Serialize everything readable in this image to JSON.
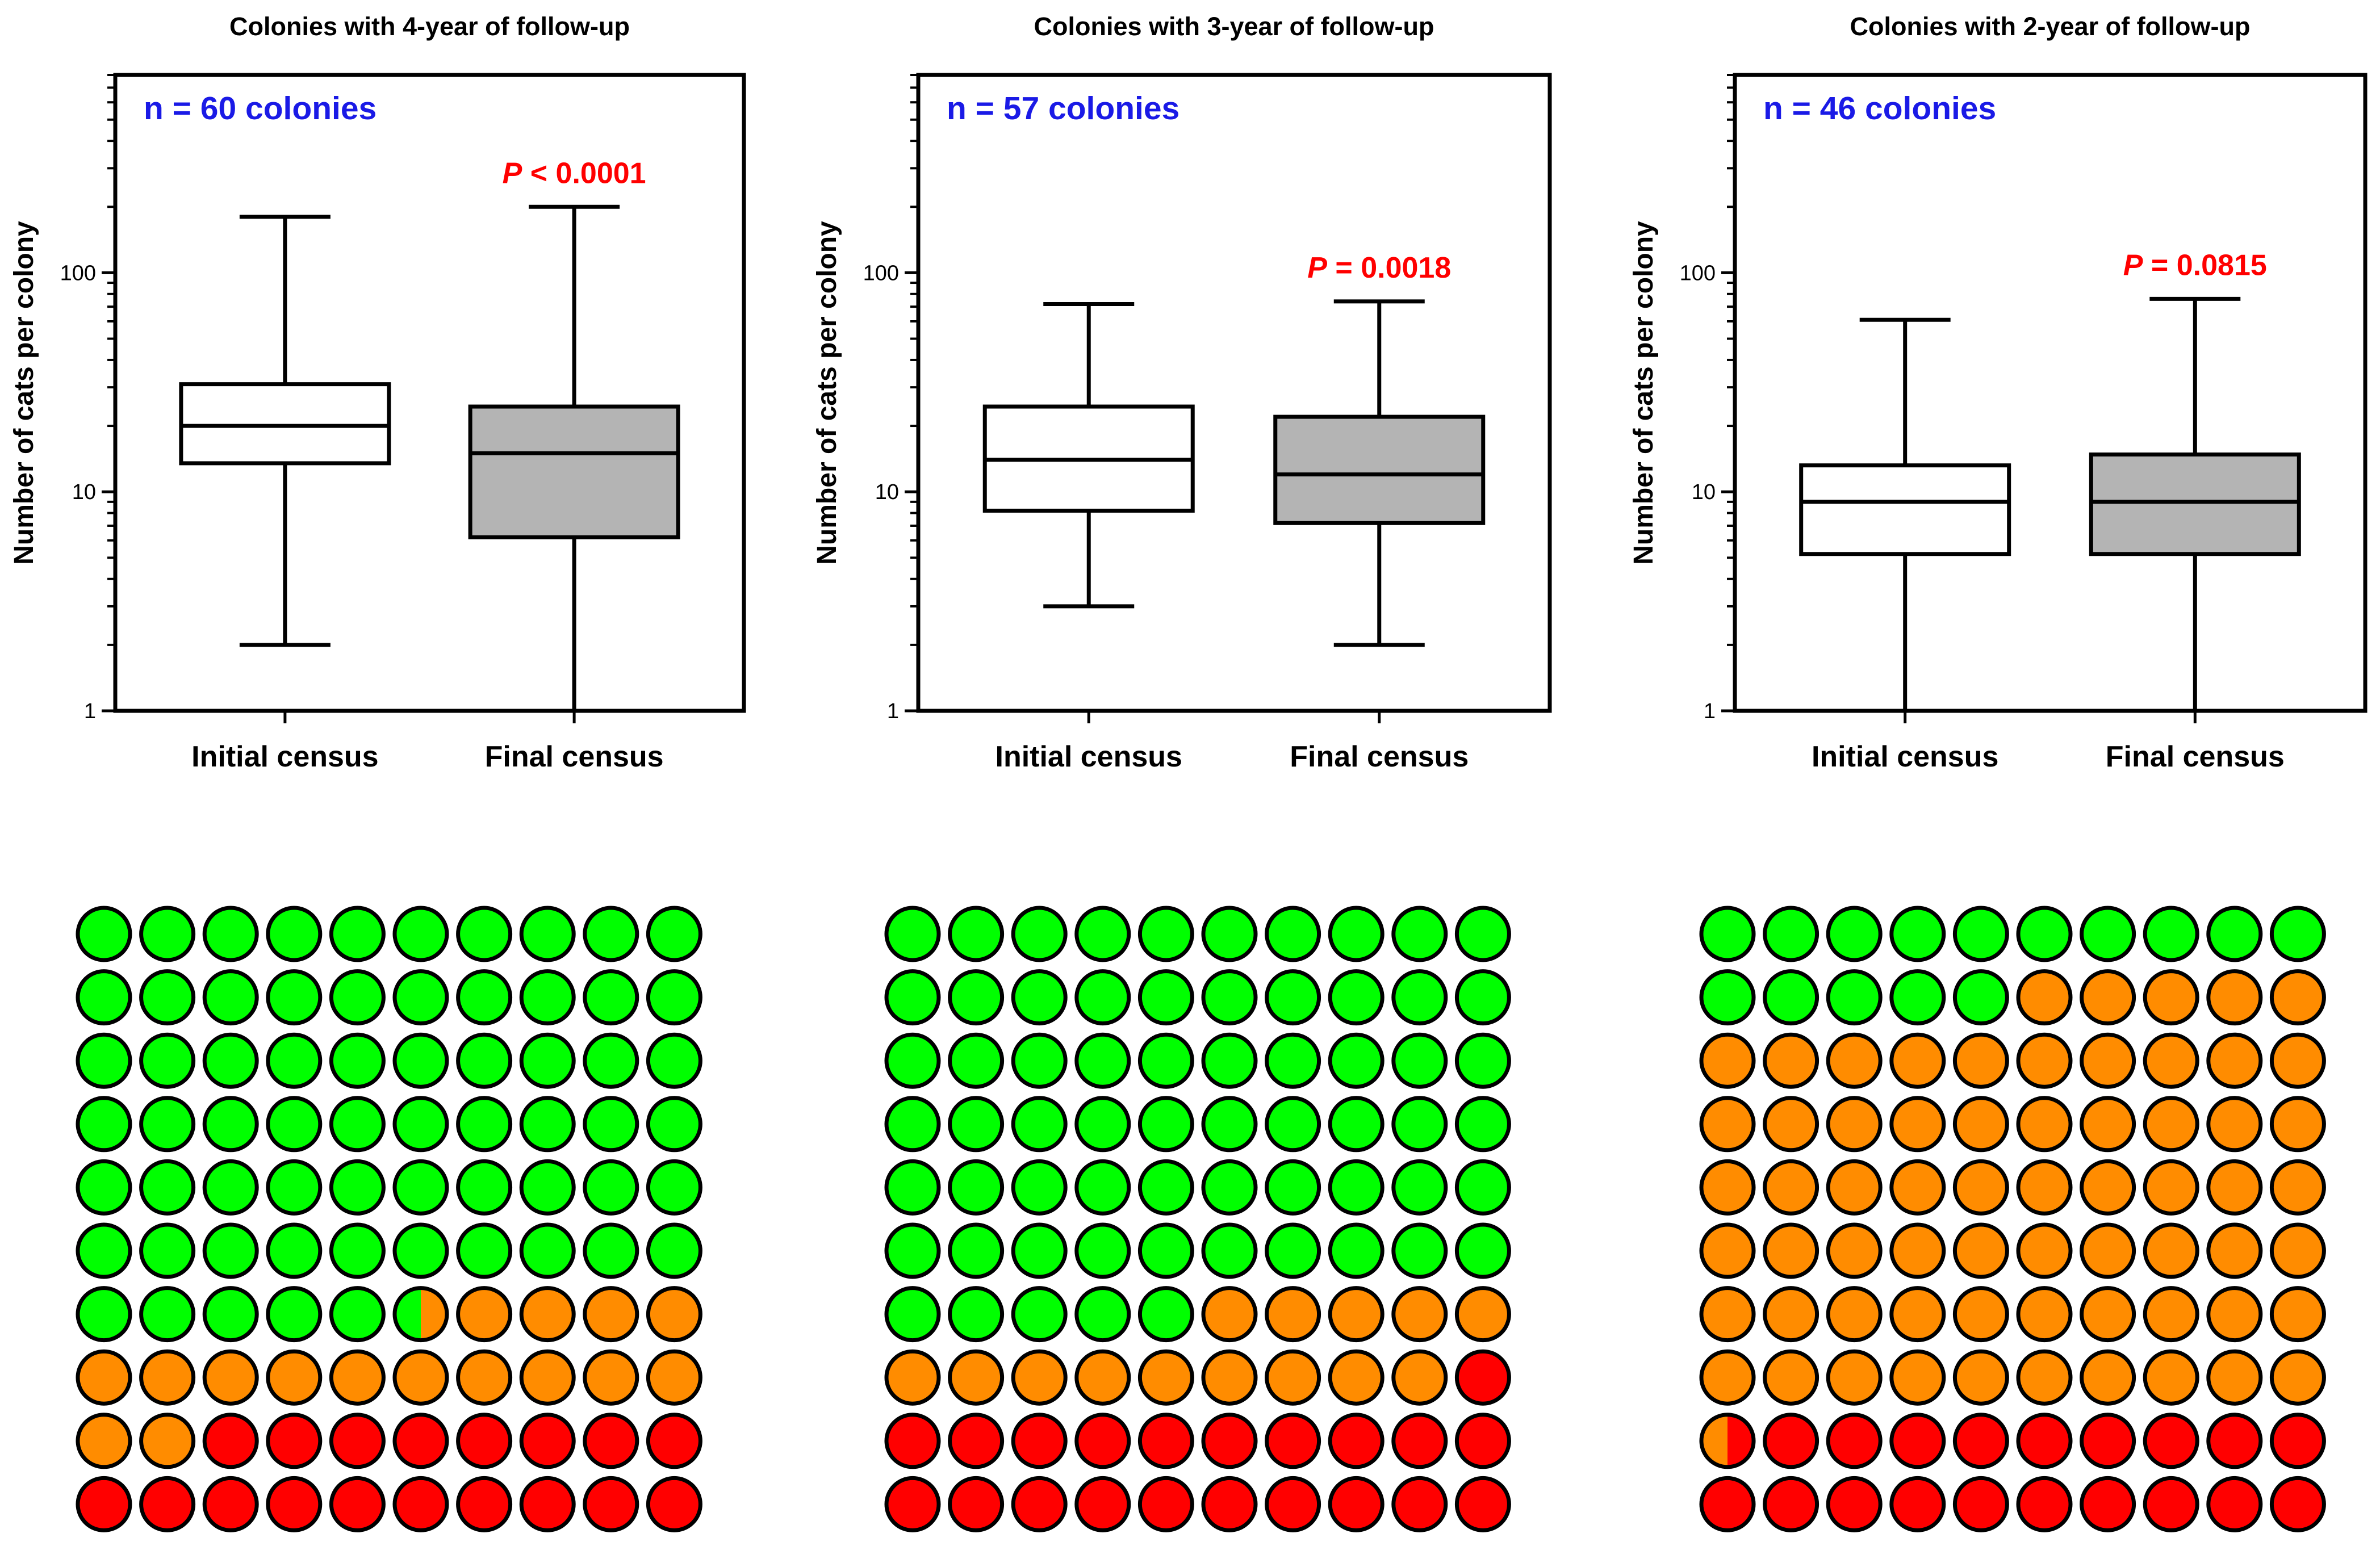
{
  "colors": {
    "green": "#00ff00",
    "orange": "#ff8c00",
    "red": "#ff0000",
    "final_box_fill": "#b4b4b4",
    "initial_box_fill": "#ffffff",
    "n_label": "#1a1ae6",
    "p_label": "#ff0000",
    "outline": "#000000"
  },
  "chart_data": [
    {
      "type": "box",
      "title": "Colonies with 4-year of follow-up",
      "ylabel": "Number of cats per colony",
      "yscale": "log",
      "ylim": [
        1,
        800
      ],
      "yticks": [
        1,
        10,
        100
      ],
      "ytick_labels": [
        "1",
        "10",
        "100"
      ],
      "categories": [
        "Initial census",
        "Final census"
      ],
      "boxes": [
        {
          "name": "Initial census",
          "min": 2,
          "q1": 13.5,
          "median": 20,
          "q3": 31,
          "max": 180
        },
        {
          "name": "Final census",
          "min": 1,
          "q1": 6.2,
          "median": 15,
          "q3": 24.5,
          "max": 200
        }
      ],
      "n_label": "n = 60 colonies",
      "p_label": {
        "italic": "P",
        "rest": " < 0.0001"
      }
    },
    {
      "type": "box",
      "title": "Colonies with 3-year of follow-up",
      "ylabel": "Number of cats per colony",
      "yscale": "log",
      "ylim": [
        1,
        800
      ],
      "yticks": [
        1,
        10,
        100
      ],
      "ytick_labels": [
        "1",
        "10",
        "100"
      ],
      "categories": [
        "Initial census",
        "Final census"
      ],
      "boxes": [
        {
          "name": "Initial census",
          "min": 3,
          "q1": 8.2,
          "median": 14,
          "q3": 24.5,
          "max": 72
        },
        {
          "name": "Final census",
          "min": 2,
          "q1": 7.2,
          "median": 12,
          "q3": 22,
          "max": 74
        }
      ],
      "n_label": "n = 57 colonies",
      "p_label": {
        "italic": "P",
        "rest": " = 0.0018"
      }
    },
    {
      "type": "box",
      "title": "Colonies with 2-year of follow-up",
      "ylabel": "Number of cats per colony",
      "yscale": "log",
      "ylim": [
        1,
        800
      ],
      "yticks": [
        1,
        10,
        100
      ],
      "ytick_labels": [
        "1",
        "10",
        "100"
      ],
      "categories": [
        "Initial census",
        "Final census"
      ],
      "boxes": [
        {
          "name": "Initial census",
          "min": 1,
          "q1": 5.2,
          "median": 9,
          "q3": 13.2,
          "max": 61
        },
        {
          "name": "Final census",
          "min": 1,
          "q1": 5.2,
          "median": 9,
          "q3": 14.8,
          "max": 76
        }
      ],
      "n_label": "n = 46 colonies",
      "p_label": {
        "italic": "P",
        "rest": " = 0.0815"
      }
    },
    {
      "type": "waffle",
      "grid": [
        10,
        10
      ],
      "cells_percent": {
        "green": 65.5,
        "orange": 16.5,
        "red": 18
      }
    },
    {
      "type": "waffle",
      "grid": [
        10,
        10
      ],
      "cells_percent": {
        "green": 65,
        "orange": 14,
        "red": 21
      }
    },
    {
      "type": "waffle",
      "grid": [
        10,
        10
      ],
      "cells_percent": {
        "green": 15,
        "orange": 65.5,
        "red": 19.5
      }
    }
  ]
}
